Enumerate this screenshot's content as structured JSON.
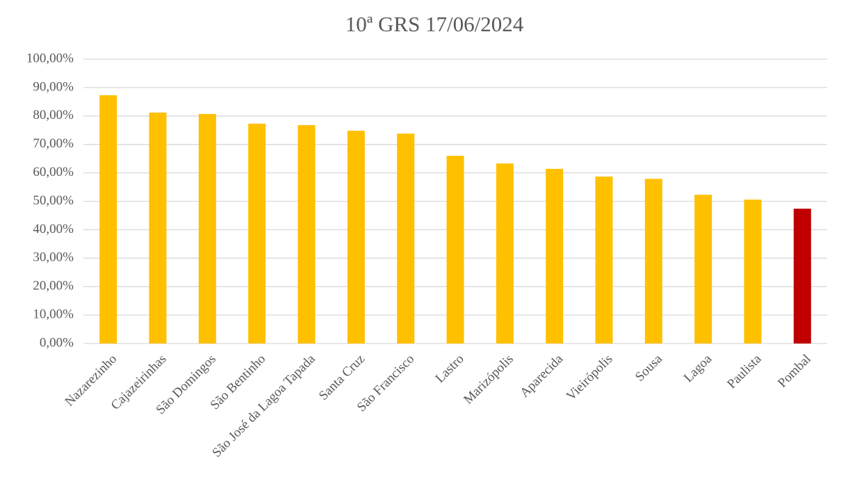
{
  "chart_data": {
    "type": "bar",
    "title": "10ª GRS 17/06/2024",
    "categories": [
      "Nazarezinho",
      "Cajazeirinhas",
      "São Domingos",
      "São Bentinho",
      "São José da Lagoa Tapada",
      "Santa Cruz",
      "São Francisco",
      "Lastro",
      "Marizópolis",
      "Aparecida",
      "Vieirópolis",
      "Sousa",
      "Lagoa",
      "Paulista",
      "Pombal"
    ],
    "values": [
      87.3,
      81.2,
      80.7,
      77.3,
      76.8,
      74.8,
      73.8,
      66.0,
      63.3,
      61.4,
      58.7,
      57.9,
      52.3,
      50.6,
      47.4
    ],
    "colors": [
      "#ffc000",
      "#ffc000",
      "#ffc000",
      "#ffc000",
      "#ffc000",
      "#ffc000",
      "#ffc000",
      "#ffc000",
      "#ffc000",
      "#ffc000",
      "#ffc000",
      "#ffc000",
      "#ffc000",
      "#ffc000",
      "#c00000"
    ],
    "ylim": [
      0,
      100
    ],
    "yticks": [
      {
        "value": 0,
        "label": "0,00%"
      },
      {
        "value": 10,
        "label": "10,00%"
      },
      {
        "value": 20,
        "label": "20,00%"
      },
      {
        "value": 30,
        "label": "30,00%"
      },
      {
        "value": 40,
        "label": "40,00%"
      },
      {
        "value": 50,
        "label": "50,00%"
      },
      {
        "value": 60,
        "label": "60,00%"
      },
      {
        "value": 70,
        "label": "70,00%"
      },
      {
        "value": 80,
        "label": "80,00%"
      },
      {
        "value": 90,
        "label": "90,00%"
      },
      {
        "value": 100,
        "label": "100,00%"
      }
    ],
    "grid": true
  }
}
